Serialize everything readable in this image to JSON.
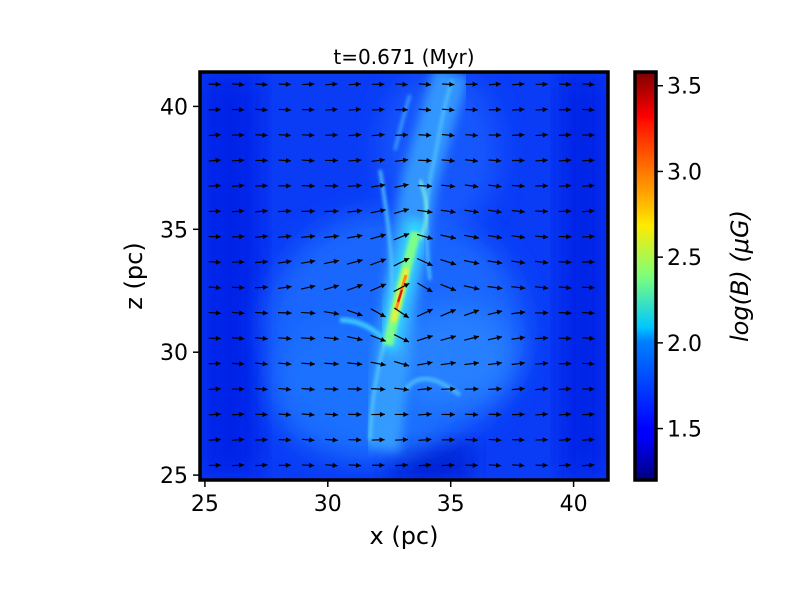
{
  "chart_data": {
    "type": "heatmap",
    "title": "t=0.671 (Myr)",
    "xlabel": "x (pc)",
    "ylabel": "z (pc)",
    "xlim": [
      24.8,
      41.4
    ],
    "ylim": [
      24.8,
      41.4
    ],
    "xticks": [
      25,
      30,
      35,
      40
    ],
    "yticks": [
      25,
      30,
      35,
      40
    ],
    "colorbar": {
      "label": "log(B) (μG)",
      "colormap": "jet",
      "vmin": 1.2,
      "vmax": 3.58,
      "ticks": [
        1.5,
        2.0,
        2.5,
        3.0,
        3.5
      ],
      "tick_labels": [
        "1.5",
        "2.0",
        "2.5",
        "3.0",
        "3.5"
      ]
    },
    "field_description": "log magnetic field strength; background ~1.6; dense filament from (31.5,26) to (34.5,41) with peak ~3.5 near (33.2,33)",
    "vector_overlay": {
      "name": "magnetic field direction",
      "grid_x_range": [
        25.4,
        40.6
      ],
      "grid_y_range": [
        25.4,
        40.9
      ],
      "nx": 17,
      "ny": 16,
      "dominant_direction": "+x"
    },
    "grid": false
  }
}
